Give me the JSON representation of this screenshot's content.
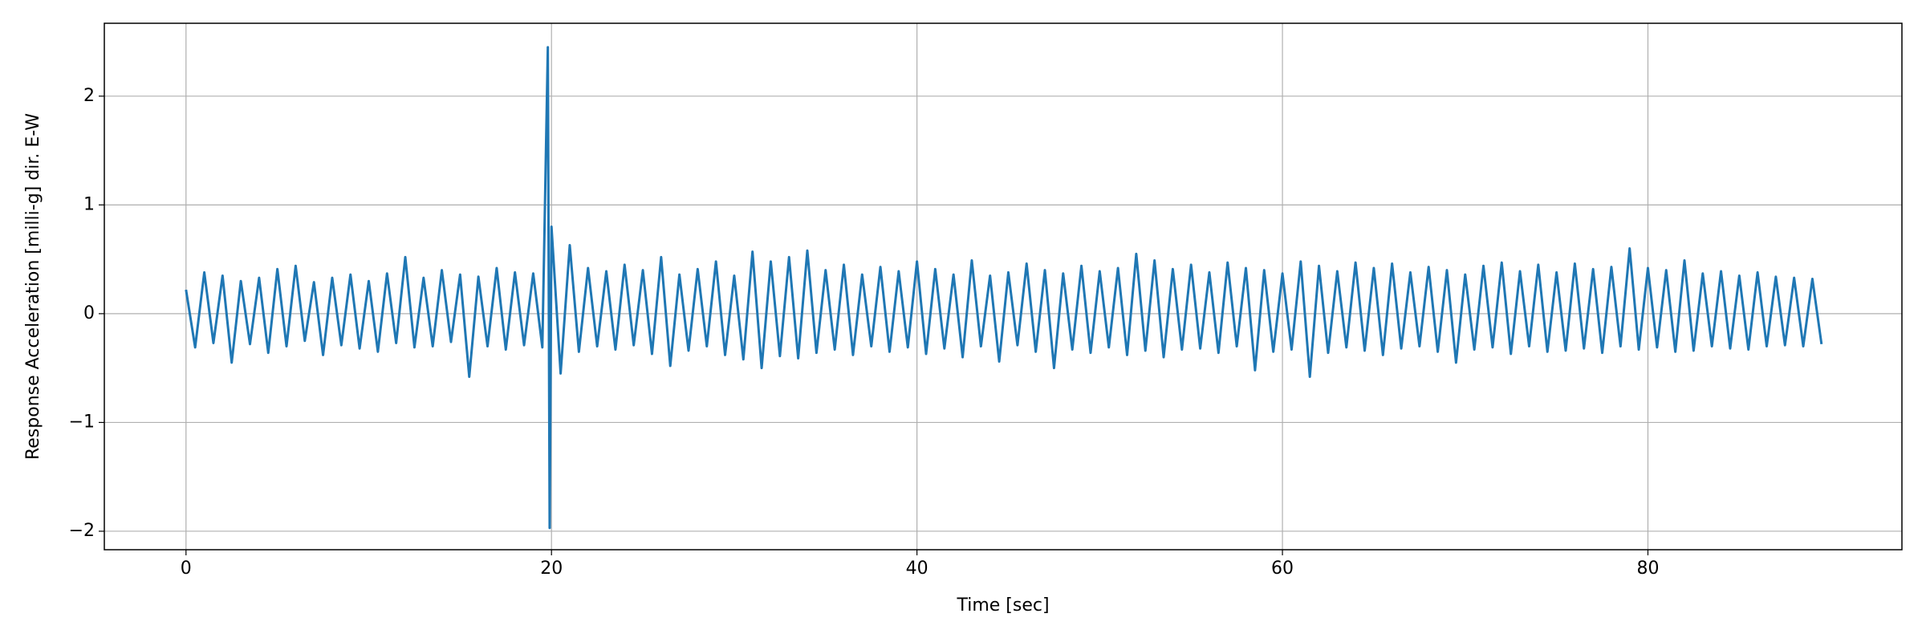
{
  "chart_data": {
    "type": "line",
    "xlabel": "Time [sec]",
    "ylabel": "Response Acceleration [milli-g] dir. E-W",
    "color": "#1f77b4",
    "grid": true,
    "xlim": [
      -4.47,
      93.9
    ],
    "ylim": [
      -2.17,
      2.67
    ],
    "xticks": [
      0,
      20,
      40,
      60,
      80
    ],
    "yticks": [
      {
        "value": -2,
        "label": "−2"
      },
      {
        "value": -1,
        "label": "−1"
      },
      0,
      1,
      2
    ],
    "x": [
      0,
      0.5,
      1,
      1.5,
      2,
      2.5,
      3,
      3.5,
      4,
      4.5,
      5,
      5.5,
      6,
      6.5,
      7,
      7.5,
      8,
      8.5,
      9,
      9.5,
      10,
      10.5,
      11,
      11.5,
      12,
      12.5,
      13,
      13.5,
      14,
      14.5,
      15,
      15.5,
      16,
      16.5,
      17,
      17.5,
      18,
      18.5,
      19,
      19.5,
      19.8,
      19.9,
      20,
      20.5,
      21,
      21.5,
      22,
      22.5,
      23,
      23.5,
      24,
      24.5,
      25,
      25.5,
      26,
      26.5,
      27,
      27.5,
      28,
      28.5,
      29,
      29.5,
      30,
      30.5,
      31,
      31.5,
      32,
      32.5,
      33,
      33.5,
      34,
      34.5,
      35,
      35.5,
      36,
      36.5,
      37,
      37.5,
      38,
      38.5,
      39,
      39.5,
      40,
      40.5,
      41,
      41.5,
      42,
      42.5,
      43,
      43.5,
      44,
      44.5,
      45,
      45.5,
      46,
      46.5,
      47,
      47.5,
      48,
      48.5,
      49,
      49.5,
      50,
      50.5,
      51,
      51.5,
      52,
      52.5,
      53,
      53.5,
      54,
      54.5,
      55,
      55.5,
      56,
      56.5,
      57,
      57.5,
      58,
      58.5,
      59,
      59.5,
      60,
      60.5,
      61,
      61.5,
      62,
      62.5,
      63,
      63.5,
      64,
      64.5,
      65,
      65.5,
      66,
      66.5,
      67,
      67.5,
      68,
      68.5,
      69,
      69.5,
      70,
      70.5,
      71,
      71.5,
      72,
      72.5,
      73,
      73.5,
      74,
      74.5,
      75,
      75.5,
      76,
      76.5,
      77,
      77.5,
      78,
      78.5,
      79,
      79.5,
      80,
      80.5,
      81,
      81.5,
      82,
      82.5,
      83,
      83.5,
      84,
      84.5,
      85,
      85.5,
      86,
      86.5,
      87,
      87.5,
      88,
      88.5,
      89,
      89.5
    ],
    "values": [
      0.22,
      -0.31,
      0.38,
      -0.27,
      0.35,
      -0.45,
      0.3,
      -0.28,
      0.33,
      -0.36,
      0.41,
      -0.3,
      0.44,
      -0.25,
      0.29,
      -0.38,
      0.33,
      -0.29,
      0.36,
      -0.32,
      0.3,
      -0.35,
      0.37,
      -0.27,
      0.52,
      -0.31,
      0.33,
      -0.3,
      0.4,
      -0.26,
      0.36,
      -0.58,
      0.34,
      -0.3,
      0.42,
      -0.33,
      0.38,
      -0.29,
      0.37,
      -0.31,
      2.45,
      -1.97,
      0.8,
      -0.55,
      0.63,
      -0.35,
      0.42,
      -0.3,
      0.39,
      -0.33,
      0.45,
      -0.29,
      0.4,
      -0.37,
      0.52,
      -0.48,
      0.36,
      -0.34,
      0.41,
      -0.3,
      0.48,
      -0.38,
      0.35,
      -0.42,
      0.57,
      -0.5,
      0.48,
      -0.39,
      0.52,
      -0.41,
      0.58,
      -0.36,
      0.4,
      -0.33,
      0.45,
      -0.38,
      0.36,
      -0.3,
      0.43,
      -0.35,
      0.39,
      -0.31,
      0.48,
      -0.37,
      0.41,
      -0.32,
      0.36,
      -0.4,
      0.49,
      -0.3,
      0.35,
      -0.44,
      0.38,
      -0.29,
      0.46,
      -0.35,
      0.4,
      -0.5,
      0.37,
      -0.33,
      0.44,
      -0.36,
      0.39,
      -0.31,
      0.42,
      -0.38,
      0.55,
      -0.34,
      0.49,
      -0.4,
      0.41,
      -0.33,
      0.45,
      -0.32,
      0.38,
      -0.36,
      0.47,
      -0.3,
      0.42,
      -0.52,
      0.4,
      -0.35,
      0.37,
      -0.33,
      0.48,
      -0.58,
      0.44,
      -0.36,
      0.39,
      -0.31,
      0.47,
      -0.34,
      0.42,
      -0.38,
      0.46,
      -0.32,
      0.38,
      -0.3,
      0.43,
      -0.35,
      0.4,
      -0.45,
      0.36,
      -0.33,
      0.44,
      -0.31,
      0.47,
      -0.37,
      0.39,
      -0.3,
      0.45,
      -0.35,
      0.38,
      -0.34,
      0.46,
      -0.32,
      0.41,
      -0.36,
      0.43,
      -0.3,
      0.6,
      -0.33,
      0.42,
      -0.31,
      0.4,
      -0.35,
      0.49,
      -0.34,
      0.37,
      -0.3,
      0.39,
      -0.32,
      0.35,
      -0.33,
      0.38,
      -0.3,
      0.34,
      -0.29,
      0.33,
      -0.3,
      0.32,
      -0.28
    ]
  }
}
